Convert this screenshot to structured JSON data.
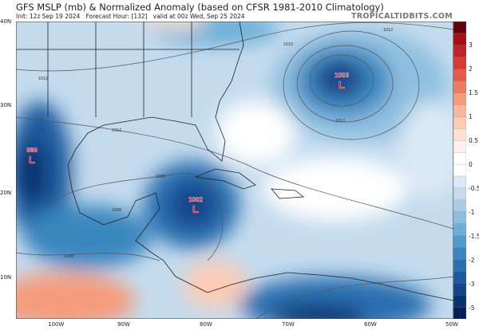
{
  "header": {
    "title": "GFS MSLP (mb) & Normalized Anomaly (based on CFSR 1981-2010 Climatology)",
    "init": "Init: 12z Sep 19 2024",
    "forecast_hour": "Forecast Hour: [132]",
    "valid": "valid at 00z Wed, Sep 25 2024",
    "brand": "TROPICALTIDBITS.COM"
  },
  "axes": {
    "lat_labels": [
      "40N",
      "30N",
      "20N",
      "10N"
    ],
    "lon_labels": [
      "100W",
      "90W",
      "80W",
      "70W",
      "60W",
      "50W"
    ]
  },
  "lows": [
    {
      "pressure": "999",
      "symbol": "L"
    },
    {
      "pressure": "1002",
      "symbol": "L"
    },
    {
      "pressure": "1003",
      "symbol": "L"
    }
  ],
  "contour_labels": [
    "1016",
    "1012",
    "1012",
    "1012",
    "1008",
    "1008",
    "1008",
    "1012"
  ],
  "colorbar": {
    "labels": [
      "3",
      "2",
      "1.5",
      "1",
      "0.5",
      "0",
      "-0.5",
      "-1",
      "-1.5",
      "-2",
      "-3",
      "-5"
    ],
    "colors": [
      "#67000d",
      "#a50f15",
      "#c0222a",
      "#d63a35",
      "#e35a48",
      "#ee7b5f",
      "#f59c7c",
      "#f9b89c",
      "#fccbb5",
      "#fde0d2",
      "#fff0ea",
      "#ffffff",
      "#ffffff",
      "#dceaf5",
      "#c6dcee",
      "#a9cde6",
      "#8fbfe0",
      "#6aaed6",
      "#4f9acb",
      "#3a87c0",
      "#2a70b0",
      "#1c5b9f",
      "#12458a",
      "#083271",
      "#08205a"
    ],
    "low_label_color": "#e8192c"
  }
}
